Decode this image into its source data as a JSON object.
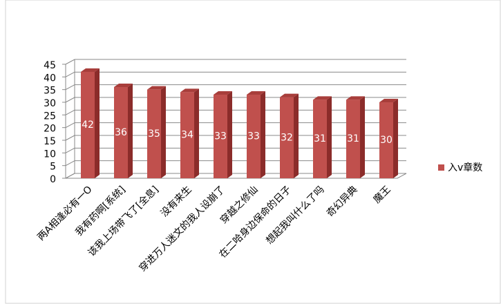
{
  "chart_data": {
    "type": "bar",
    "categories": [
      "两A相逢必有一O",
      "我有药啊[系统]",
      "该我上场带飞了[全息]",
      "没有来生",
      "穿进万人迷文的我人设崩了",
      "穿越之修仙",
      "在二哈身边保命的日子",
      "想起我叫什么了吗",
      "奇幻异典",
      "魔王"
    ],
    "series": [
      {
        "name": "入v章数",
        "color": "#c0504d",
        "values": [
          42,
          36,
          35,
          34,
          33,
          33,
          32,
          31,
          31,
          30
        ]
      }
    ],
    "ylim": [
      0,
      45
    ],
    "yticks": [
      0,
      5,
      10,
      15,
      20,
      25,
      30,
      35,
      40,
      45
    ],
    "grid": true,
    "legend": "right"
  }
}
